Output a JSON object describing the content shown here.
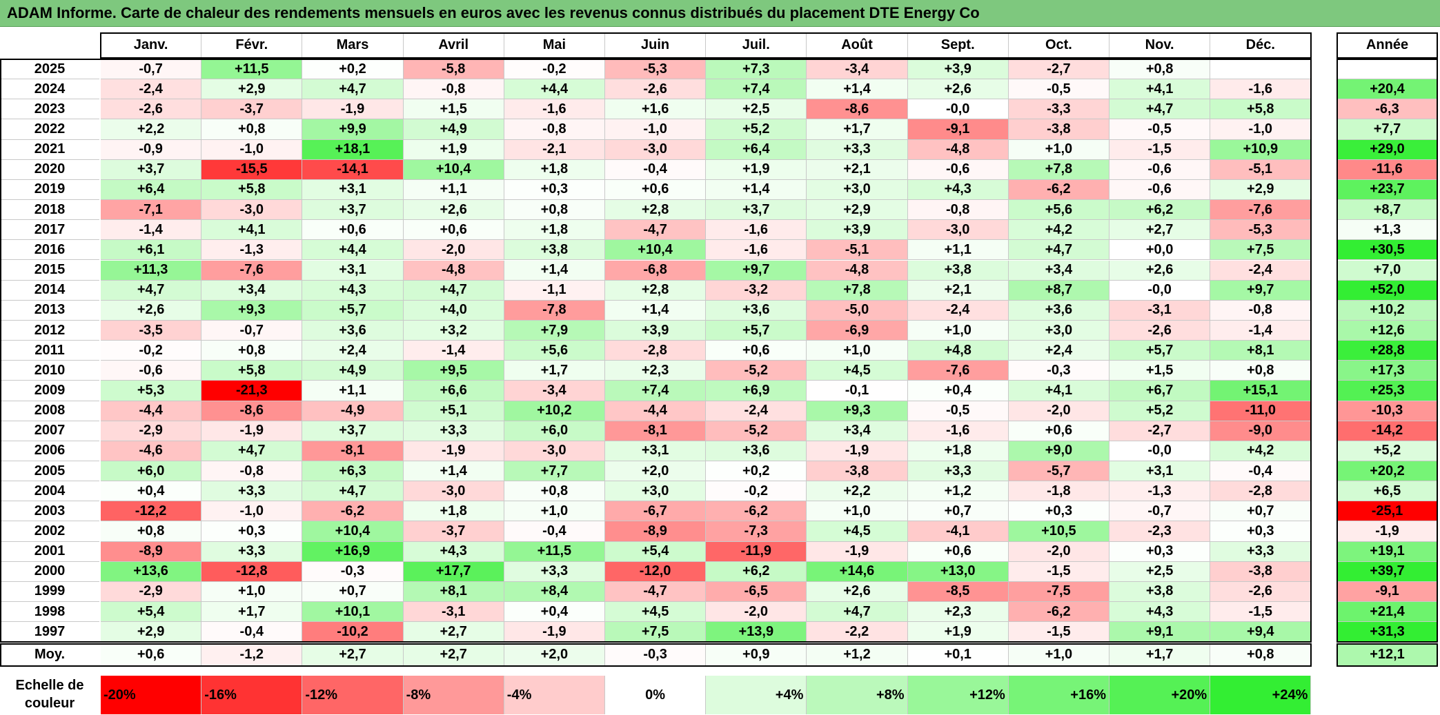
{
  "title": "ADAM Informe. Carte de chaleur des rendements mensuels en euros avec les revenus connus distribués du placement DTE Energy Co",
  "chart_data": {
    "type": "heatmap",
    "columns": [
      "Janv.",
      "Févr.",
      "Mars",
      "Avril",
      "Mai",
      "Juin",
      "Juil.",
      "Août",
      "Sept.",
      "Oct.",
      "Nov.",
      "Déc."
    ],
    "year_column": "Année",
    "rows": [
      {
        "year": "2025",
        "values": [
          "-0,7",
          "+11,5",
          "+0,2",
          "-5,8",
          "-0,2",
          "-5,3",
          "+7,3",
          "-3,4",
          "+3,9",
          "-2,7",
          "+0,8",
          ""
        ],
        "annual": ""
      },
      {
        "year": "2024",
        "values": [
          "-2,4",
          "+2,9",
          "+4,7",
          "-0,8",
          "+4,4",
          "-2,6",
          "+7,4",
          "+1,4",
          "+2,6",
          "-0,5",
          "+4,1",
          "-1,6"
        ],
        "annual": "+20,4"
      },
      {
        "year": "2023",
        "values": [
          "-2,6",
          "-3,7",
          "-1,9",
          "+1,5",
          "-1,6",
          "+1,6",
          "+2,5",
          "-8,6",
          "-0,0",
          "-3,3",
          "+4,7",
          "+5,8"
        ],
        "annual": "-6,3"
      },
      {
        "year": "2022",
        "values": [
          "+2,2",
          "+0,8",
          "+9,9",
          "+4,9",
          "-0,8",
          "-1,0",
          "+5,2",
          "+1,7",
          "-9,1",
          "-3,8",
          "-0,5",
          "-1,0"
        ],
        "annual": "+7,7"
      },
      {
        "year": "2021",
        "values": [
          "-0,9",
          "-1,0",
          "+18,1",
          "+1,9",
          "-2,1",
          "-3,0",
          "+6,4",
          "+3,3",
          "-4,8",
          "+1,0",
          "-1,5",
          "+10,9"
        ],
        "annual": "+29,0"
      },
      {
        "year": "2020",
        "values": [
          "+3,7",
          "-15,5",
          "-14,1",
          "+10,4",
          "+1,8",
          "-0,4",
          "+1,9",
          "+2,1",
          "-0,6",
          "+7,8",
          "-0,6",
          "-5,1"
        ],
        "annual": "-11,6"
      },
      {
        "year": "2019",
        "values": [
          "+6,4",
          "+5,8",
          "+3,1",
          "+1,1",
          "+0,3",
          "+0,6",
          "+1,4",
          "+3,0",
          "+4,3",
          "-6,2",
          "-0,6",
          "+2,9"
        ],
        "annual": "+23,7"
      },
      {
        "year": "2018",
        "values": [
          "-7,1",
          "-3,0",
          "+3,7",
          "+2,6",
          "+0,8",
          "+2,8",
          "+3,7",
          "+2,9",
          "-0,8",
          "+5,6",
          "+6,2",
          "-7,6"
        ],
        "annual": "+8,7"
      },
      {
        "year": "2017",
        "values": [
          "-1,4",
          "+4,1",
          "+0,6",
          "+0,6",
          "+1,8",
          "-4,7",
          "-1,6",
          "+3,9",
          "-3,0",
          "+4,2",
          "+2,7",
          "-5,3"
        ],
        "annual": "+1,3"
      },
      {
        "year": "2016",
        "values": [
          "+6,1",
          "-1,3",
          "+4,4",
          "-2,0",
          "+3,8",
          "+10,4",
          "-1,6",
          "-5,1",
          "+1,1",
          "+4,7",
          "+0,0",
          "+7,5"
        ],
        "annual": "+30,5"
      },
      {
        "year": "2015",
        "values": [
          "+11,3",
          "-7,6",
          "+3,1",
          "-4,8",
          "+1,4",
          "-6,8",
          "+9,7",
          "-4,8",
          "+3,8",
          "+3,4",
          "+2,6",
          "-2,4"
        ],
        "annual": "+7,0"
      },
      {
        "year": "2014",
        "values": [
          "+4,7",
          "+3,4",
          "+4,3",
          "+4,7",
          "-1,1",
          "+2,8",
          "-3,2",
          "+7,8",
          "+2,1",
          "+8,7",
          "-0,0",
          "+9,7"
        ],
        "annual": "+52,0"
      },
      {
        "year": "2013",
        "values": [
          "+2,6",
          "+9,3",
          "+5,7",
          "+4,0",
          "-7,8",
          "+1,4",
          "+3,6",
          "-5,0",
          "-2,4",
          "+3,6",
          "-3,1",
          "-0,8"
        ],
        "annual": "+10,2"
      },
      {
        "year": "2012",
        "values": [
          "-3,5",
          "-0,7",
          "+3,6",
          "+3,2",
          "+7,9",
          "+3,9",
          "+5,7",
          "-6,9",
          "+1,0",
          "+3,0",
          "-2,6",
          "-1,4"
        ],
        "annual": "+12,6"
      },
      {
        "year": "2011",
        "values": [
          "-0,2",
          "+0,8",
          "+2,4",
          "-1,4",
          "+5,6",
          "-2,8",
          "+0,6",
          "+1,0",
          "+4,8",
          "+2,4",
          "+5,7",
          "+8,1"
        ],
        "annual": "+28,8"
      },
      {
        "year": "2010",
        "values": [
          "-0,6",
          "+5,8",
          "+4,9",
          "+9,5",
          "+1,7",
          "+2,3",
          "-5,2",
          "+4,5",
          "-7,6",
          "-0,3",
          "+1,5",
          "+0,8"
        ],
        "annual": "+17,3"
      },
      {
        "year": "2009",
        "values": [
          "+5,3",
          "-21,3",
          "+1,1",
          "+6,6",
          "-3,4",
          "+7,4",
          "+6,9",
          "-0,1",
          "+0,4",
          "+4,1",
          "+6,7",
          "+15,1"
        ],
        "annual": "+25,3"
      },
      {
        "year": "2008",
        "values": [
          "-4,4",
          "-8,6",
          "-4,9",
          "+5,1",
          "+10,2",
          "-4,4",
          "-2,4",
          "+9,3",
          "-0,5",
          "-2,0",
          "+5,2",
          "-11,0"
        ],
        "annual": "-10,3"
      },
      {
        "year": "2007",
        "values": [
          "-2,9",
          "-1,9",
          "+3,7",
          "+3,3",
          "+6,0",
          "-8,1",
          "-5,2",
          "+3,4",
          "-1,6",
          "+0,6",
          "-2,7",
          "-9,0"
        ],
        "annual": "-14,2"
      },
      {
        "year": "2006",
        "values": [
          "-4,6",
          "+4,7",
          "-8,1",
          "-1,9",
          "-3,0",
          "+3,1",
          "+3,6",
          "-1,9",
          "+1,8",
          "+9,0",
          "-0,0",
          "+4,2"
        ],
        "annual": "+5,2"
      },
      {
        "year": "2005",
        "values": [
          "+6,0",
          "-0,8",
          "+6,3",
          "+1,4",
          "+7,7",
          "+2,0",
          "+0,2",
          "-3,8",
          "+3,3",
          "-5,7",
          "+3,1",
          "-0,4"
        ],
        "annual": "+20,2"
      },
      {
        "year": "2004",
        "values": [
          "+0,4",
          "+3,3",
          "+4,7",
          "-3,0",
          "+0,8",
          "+3,0",
          "-0,2",
          "+2,2",
          "+1,2",
          "-1,8",
          "-1,3",
          "-2,8"
        ],
        "annual": "+6,5"
      },
      {
        "year": "2003",
        "values": [
          "-12,2",
          "-1,0",
          "-6,2",
          "+1,8",
          "+1,0",
          "-6,7",
          "-6,2",
          "+1,0",
          "+0,7",
          "+0,3",
          "-0,7",
          "+0,7"
        ],
        "annual": "-25,1"
      },
      {
        "year": "2002",
        "values": [
          "+0,8",
          "+0,3",
          "+10,4",
          "-3,7",
          "-0,4",
          "-8,9",
          "-7,3",
          "+4,5",
          "-4,1",
          "+10,5",
          "-2,3",
          "+0,3"
        ],
        "annual": "-1,9"
      },
      {
        "year": "2001",
        "values": [
          "-8,9",
          "+3,3",
          "+16,9",
          "+4,3",
          "+11,5",
          "+5,4",
          "-11,9",
          "-1,9",
          "+0,6",
          "-2,0",
          "+0,3",
          "+3,3"
        ],
        "annual": "+19,1"
      },
      {
        "year": "2000",
        "values": [
          "+13,6",
          "-12,8",
          "-0,3",
          "+17,7",
          "+3,3",
          "-12,0",
          "+6,2",
          "+14,6",
          "+13,0",
          "-1,5",
          "+2,5",
          "-3,8"
        ],
        "annual": "+39,7"
      },
      {
        "year": "1999",
        "values": [
          "-2,9",
          "+1,0",
          "+0,7",
          "+8,1",
          "+8,4",
          "-4,7",
          "-6,5",
          "+2,6",
          "-8,5",
          "-7,5",
          "+3,8",
          "-2,6"
        ],
        "annual": "-9,1"
      },
      {
        "year": "1998",
        "values": [
          "+5,4",
          "+1,7",
          "+10,1",
          "-3,1",
          "+0,4",
          "+4,5",
          "-2,0",
          "+4,7",
          "+2,3",
          "-6,2",
          "+4,3",
          "-1,5"
        ],
        "annual": "+21,4"
      },
      {
        "year": "1997",
        "values": [
          "+2,9",
          "-0,4",
          "-10,2",
          "+2,7",
          "-1,9",
          "+7,5",
          "+13,9",
          "-2,2",
          "+1,9",
          "-1,5",
          "+9,1",
          "+9,4"
        ],
        "annual": "+31,3"
      }
    ],
    "average": {
      "label": "Moy.",
      "values": [
        "+0,6",
        "-1,2",
        "+2,7",
        "+2,7",
        "+2,0",
        "-0,3",
        "+0,9",
        "+1,2",
        "+0,1",
        "+1,0",
        "+1,7",
        "+0,8"
      ],
      "annual": "+12,1"
    },
    "legend": {
      "label_line1": "Echelle de",
      "label_line2": "couleur",
      "steps": [
        "-20%",
        "-16%",
        "-12%",
        "-8%",
        "-4%",
        "0%",
        "+4%",
        "+8%",
        "+12%",
        "+16%",
        "+20%",
        "+24%"
      ]
    },
    "colors": {
      "negative_max": "#ff0000",
      "neutral": "#ffffff",
      "positive_max": "#33ee33",
      "title_bar": "#7ec87e"
    }
  }
}
